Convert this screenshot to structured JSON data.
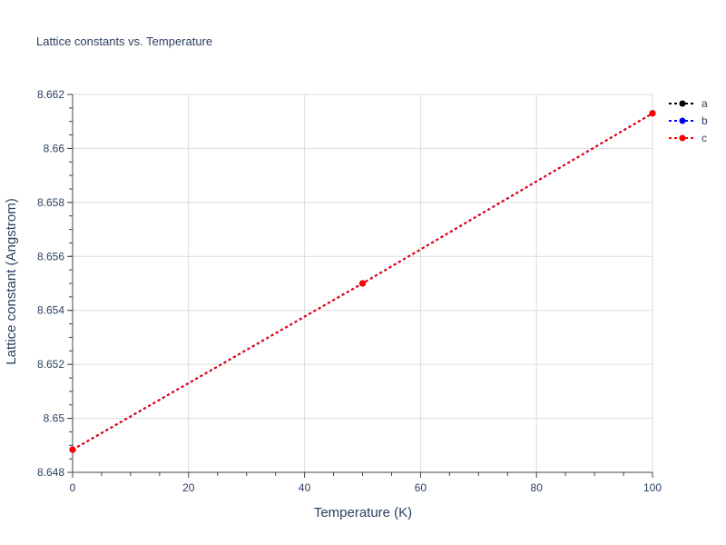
{
  "chart_data": {
    "type": "line",
    "title": "Lattice constants vs. Temperature",
    "xlabel": "Temperature (K)",
    "ylabel": "Lattice constant (Angstrom)",
    "xlim": [
      0,
      100
    ],
    "ylim": [
      8.648,
      8.662
    ],
    "xticks": [
      "0",
      "20",
      "40",
      "60",
      "80",
      "100"
    ],
    "yticks": [
      "8.648",
      "8.65",
      "8.652",
      "8.654",
      "8.656",
      "8.658",
      "8.66",
      "8.662"
    ],
    "grid": true,
    "legend_position": "top-right",
    "x": [
      0,
      50,
      100
    ],
    "series": [
      {
        "name": "a",
        "color": "#000000",
        "values": [
          8.64884,
          8.655,
          8.6613
        ]
      },
      {
        "name": "b",
        "color": "#0000ff",
        "values": [
          8.64884,
          8.655,
          8.6613
        ]
      },
      {
        "name": "c",
        "color": "#ff0000",
        "values": [
          8.64884,
          8.655,
          8.6613
        ]
      }
    ]
  }
}
